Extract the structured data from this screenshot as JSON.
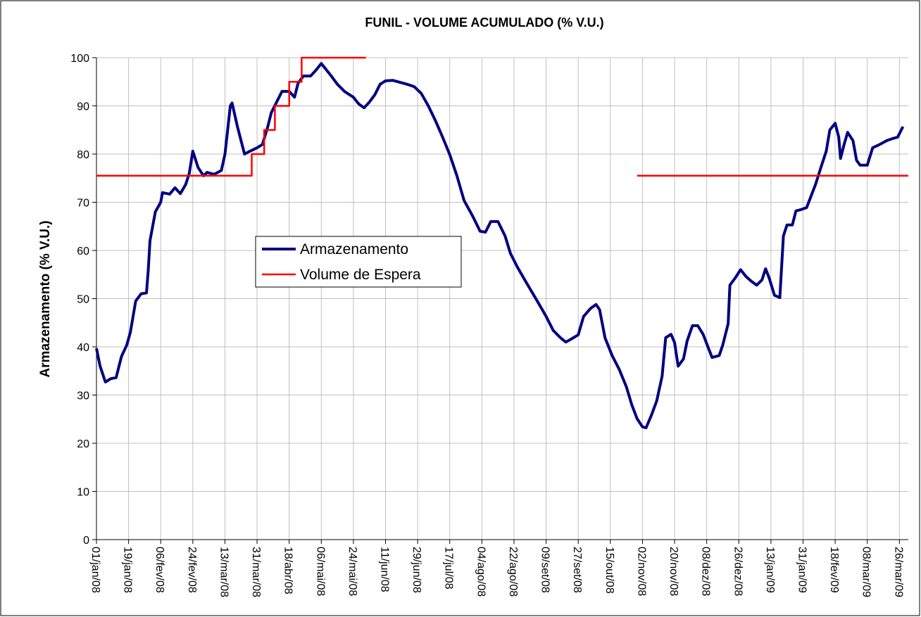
{
  "chart_data": {
    "type": "line",
    "title": "FUNIL - VOLUME ACUMULADO (% V.U.)",
    "y_label": "Armazenamento (% V.U.)",
    "xlim": [
      "2008-01-01",
      "2009-03-31"
    ],
    "ylim": [
      0,
      100
    ],
    "yticks": [
      0,
      10,
      20,
      30,
      40,
      50,
      60,
      70,
      80,
      90,
      100
    ],
    "xticks": [
      {
        "value": "2008-01-01",
        "label": "01/jan/08"
      },
      {
        "value": "2008-01-19",
        "label": "19/jan/08"
      },
      {
        "value": "2008-02-06",
        "label": "06/fev/08"
      },
      {
        "value": "2008-02-24",
        "label": "24/fev/08"
      },
      {
        "value": "2008-03-13",
        "label": "13/mar/08"
      },
      {
        "value": "2008-03-31",
        "label": "31/mar/08"
      },
      {
        "value": "2008-04-18",
        "label": "18/abr/08"
      },
      {
        "value": "2008-05-06",
        "label": "06/mai/08"
      },
      {
        "value": "2008-05-24",
        "label": "24/mai/08"
      },
      {
        "value": "2008-06-11",
        "label": "11/jun/08"
      },
      {
        "value": "2008-06-29",
        "label": "29/jun/08"
      },
      {
        "value": "2008-07-17",
        "label": "17/jul/08"
      },
      {
        "value": "2008-08-04",
        "label": "04/ago/08"
      },
      {
        "value": "2008-08-22",
        "label": "22/ago/08"
      },
      {
        "value": "2008-09-09",
        "label": "09/set/08"
      },
      {
        "value": "2008-09-27",
        "label": "27/set/08"
      },
      {
        "value": "2008-10-15",
        "label": "15/out/08"
      },
      {
        "value": "2008-11-02",
        "label": "02/nov/08"
      },
      {
        "value": "2008-11-20",
        "label": "20/nov/08"
      },
      {
        "value": "2008-12-08",
        "label": "08/dez/08"
      },
      {
        "value": "2008-12-26",
        "label": "26/dez/08"
      },
      {
        "value": "2009-01-13",
        "label": "13/jan/09"
      },
      {
        "value": "2009-01-31",
        "label": "31/jan/09"
      },
      {
        "value": "2009-02-18",
        "label": "18/fev/09"
      },
      {
        "value": "2009-03-08",
        "label": "08/mar/09"
      },
      {
        "value": "2009-03-26",
        "label": "26/mar/09"
      }
    ],
    "grid": true,
    "series": [
      {
        "name": "Armazenamento",
        "color": "#000080",
        "x": [
          "2008-01-01",
          "2008-01-03",
          "2008-01-06",
          "2008-01-09",
          "2008-01-12",
          "2008-01-15",
          "2008-01-18",
          "2008-01-20",
          "2008-01-23",
          "2008-01-26",
          "2008-01-29",
          "2008-01-30",
          "2008-01-31",
          "2008-02-03",
          "2008-02-06",
          "2008-02-07",
          "2008-02-11",
          "2008-02-14",
          "2008-02-17",
          "2008-02-20",
          "2008-02-22",
          "2008-02-24",
          "2008-02-27",
          "2008-03-01",
          "2008-03-03",
          "2008-03-07",
          "2008-03-11",
          "2008-03-13",
          "2008-03-16",
          "2008-03-17",
          "2008-03-20",
          "2008-03-22",
          "2008-03-24",
          "2008-03-27",
          "2008-03-31",
          "2008-04-03",
          "2008-04-06",
          "2008-04-08",
          "2008-04-11",
          "2008-04-14",
          "2008-04-18",
          "2008-04-21",
          "2008-04-23",
          "2008-04-26",
          "2008-04-30",
          "2008-05-03",
          "2008-05-06",
          "2008-05-09",
          "2008-05-12",
          "2008-05-15",
          "2008-05-19",
          "2008-05-24",
          "2008-05-27",
          "2008-05-30",
          "2008-06-02",
          "2008-06-05",
          "2008-06-08",
          "2008-06-11",
          "2008-06-15",
          "2008-06-19",
          "2008-06-23",
          "2008-06-27",
          "2008-07-01",
          "2008-07-05",
          "2008-07-09",
          "2008-07-13",
          "2008-07-17",
          "2008-07-21",
          "2008-07-25",
          "2008-07-30",
          "2008-08-03",
          "2008-08-06",
          "2008-08-09",
          "2008-08-13",
          "2008-08-17",
          "2008-08-20",
          "2008-08-24",
          "2008-08-28",
          "2008-09-01",
          "2008-09-05",
          "2008-09-09",
          "2008-09-13",
          "2008-09-17",
          "2008-09-20",
          "2008-09-23",
          "2008-09-27",
          "2008-09-30",
          "2008-10-04",
          "2008-10-07",
          "2008-10-09",
          "2008-10-12",
          "2008-10-16",
          "2008-10-20",
          "2008-10-24",
          "2008-10-27",
          "2008-10-30",
          "2008-11-02",
          "2008-11-04",
          "2008-11-07",
          "2008-11-10",
          "2008-11-13",
          "2008-11-15",
          "2008-11-18",
          "2008-11-20",
          "2008-11-22",
          "2008-11-25",
          "2008-11-27",
          "2008-11-30",
          "2008-12-03",
          "2008-12-06",
          "2008-12-09",
          "2008-12-11",
          "2008-12-15",
          "2008-12-17",
          "2008-12-20",
          "2008-12-21",
          "2008-12-24",
          "2008-12-27",
          "2008-12-30",
          "2009-01-02",
          "2009-01-05",
          "2009-01-08",
          "2009-01-10",
          "2009-01-12",
          "2009-01-15",
          "2009-01-18",
          "2009-01-20",
          "2009-01-22",
          "2009-01-25",
          "2009-01-27",
          "2009-01-30",
          "2009-02-02",
          "2009-02-04",
          "2009-02-07",
          "2009-02-10",
          "2009-02-13",
          "2009-02-15",
          "2009-02-18",
          "2009-02-20",
          "2009-02-21",
          "2009-02-23",
          "2009-02-25",
          "2009-02-28",
          "2009-03-02",
          "2009-03-04",
          "2009-03-08",
          "2009-03-11",
          "2009-03-15",
          "2009-03-19",
          "2009-03-22",
          "2009-03-25",
          "2009-03-28"
        ],
        "values": [
          39.7,
          36,
          32.7,
          33.4,
          33.6,
          38,
          40.4,
          43,
          49.5,
          51,
          51.2,
          55.8,
          62,
          68,
          70,
          72,
          71.7,
          73,
          71.8,
          73.7,
          76,
          80.6,
          77.2,
          75.5,
          76.2,
          75.8,
          76.6,
          80,
          90,
          90.6,
          85.7,
          82.8,
          80,
          80.6,
          81.3,
          82,
          85.7,
          88.6,
          90.8,
          93,
          93,
          91.8,
          94.7,
          96.2,
          96.2,
          97.4,
          98.8,
          97.4,
          96,
          94.5,
          93,
          91.8,
          90.4,
          89.6,
          90.8,
          92.3,
          94.5,
          95.2,
          95.3,
          94.9,
          94.5,
          94,
          92.6,
          90,
          86.9,
          83.5,
          79.9,
          75.5,
          70.4,
          67,
          64,
          63.8,
          66,
          66,
          63,
          59.4,
          56.5,
          53.9,
          51.4,
          48.9,
          46.3,
          43.4,
          41.9,
          41,
          41.6,
          42.5,
          46.3,
          48,
          48.8,
          47.7,
          41.9,
          38.2,
          35.3,
          31.7,
          28,
          25.1,
          23.4,
          23.2,
          25.8,
          28.8,
          33.9,
          41.9,
          42.6,
          40.9,
          36,
          37.5,
          41.2,
          44.4,
          44.4,
          42.6,
          39.7,
          37.8,
          38.2,
          40.4,
          44.8,
          52.8,
          54.3,
          56,
          54.6,
          53.6,
          52.8,
          53.9,
          56.2,
          54.3,
          50.7,
          50.2,
          63,
          65.3,
          65.3,
          68.2,
          68.5,
          68.9,
          70.8,
          73.7,
          77.2,
          80.6,
          85,
          86.4,
          83.5,
          79.1,
          82,
          84.5,
          82.8,
          78.7,
          77.7,
          77.7,
          81.3,
          82,
          82.8,
          83.2,
          83.5,
          85.7
        ]
      },
      {
        "name": "Volume de Espera",
        "color": "#ff0000",
        "x": [
          "2008-01-01",
          "2008-03-28",
          "2008-03-28",
          "2008-04-04",
          "2008-04-04",
          "2008-04-10",
          "2008-04-10",
          "2008-04-18",
          "2008-04-18",
          "2008-04-25",
          "2008-04-25",
          "2008-05-31",
          "2008-06-01",
          "2008-10-30",
          "2009-03-31"
        ],
        "values": [
          75.5,
          75.5,
          80,
          80,
          85,
          85,
          90,
          90,
          95,
          95,
          100,
          100,
          null,
          75.5,
          75.5
        ]
      }
    ]
  }
}
